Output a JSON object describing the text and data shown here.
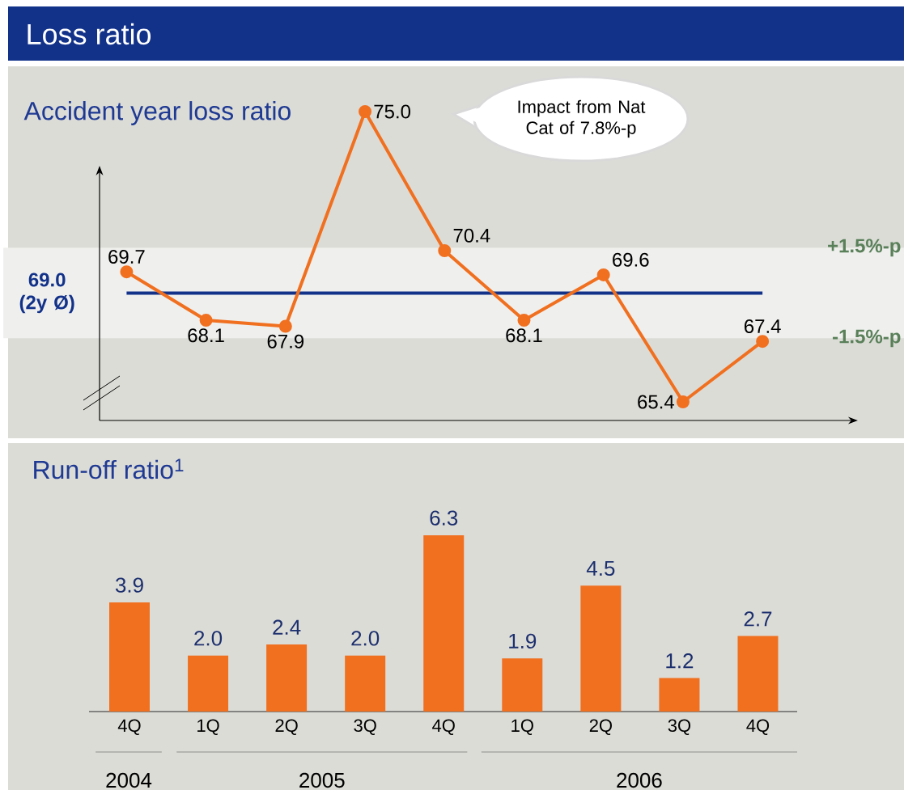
{
  "chart_data": [
    {
      "type": "line",
      "title": "Loss ratio",
      "subtitle": "Accident year loss ratio",
      "categories": [
        null,
        null,
        null,
        null,
        null,
        null,
        null,
        null,
        null
      ],
      "values": [
        69.7,
        68.1,
        67.9,
        75.0,
        70.4,
        68.1,
        69.6,
        65.4,
        67.4
      ],
      "value_labels": [
        "69.7",
        "68.1",
        "67.9",
        "75.0",
        "70.4",
        "68.1",
        "69.6",
        "65.4",
        "67.4"
      ],
      "color": "#f07020",
      "marker": "circle",
      "tick_labels": false,
      "ref_lines": [
        {
          "axis": "y",
          "value": 69.0,
          "label": "69.0 (2y Ø)",
          "color": "#12328a"
        }
      ],
      "bands": [
        {
          "axis": "y",
          "from": 67.5,
          "to": 70.5,
          "color": "#efefed"
        }
      ],
      "annotations": [
        "Impact from Nat Cat of 7.8%-p",
        {
          "text": "+1.5%-p",
          "y": 70.5
        },
        {
          "text": "-1.5%-p",
          "y": 67.5
        }
      ]
    },
    {
      "type": "bar",
      "title": "Run-off ratio$^{1}$",
      "categories": [
        "4Q",
        "1Q",
        "2Q",
        "3Q",
        "4Q",
        "1Q",
        "2Q",
        "3Q",
        "4Q"
      ],
      "values": [
        3.9,
        2.0,
        2.4,
        2.0,
        6.3,
        1.9,
        4.5,
        1.2,
        2.7
      ],
      "value_labels": [
        "3.9",
        "2.0",
        "2.4",
        "2.0",
        "6.3",
        "1.9",
        "4.5",
        "1.2",
        "2.7"
      ],
      "color": "#f07020",
      "tick_labels": "x",
      "annotations": [
        "2004",
        "2005",
        "2006"
      ]
    }
  ]
}
